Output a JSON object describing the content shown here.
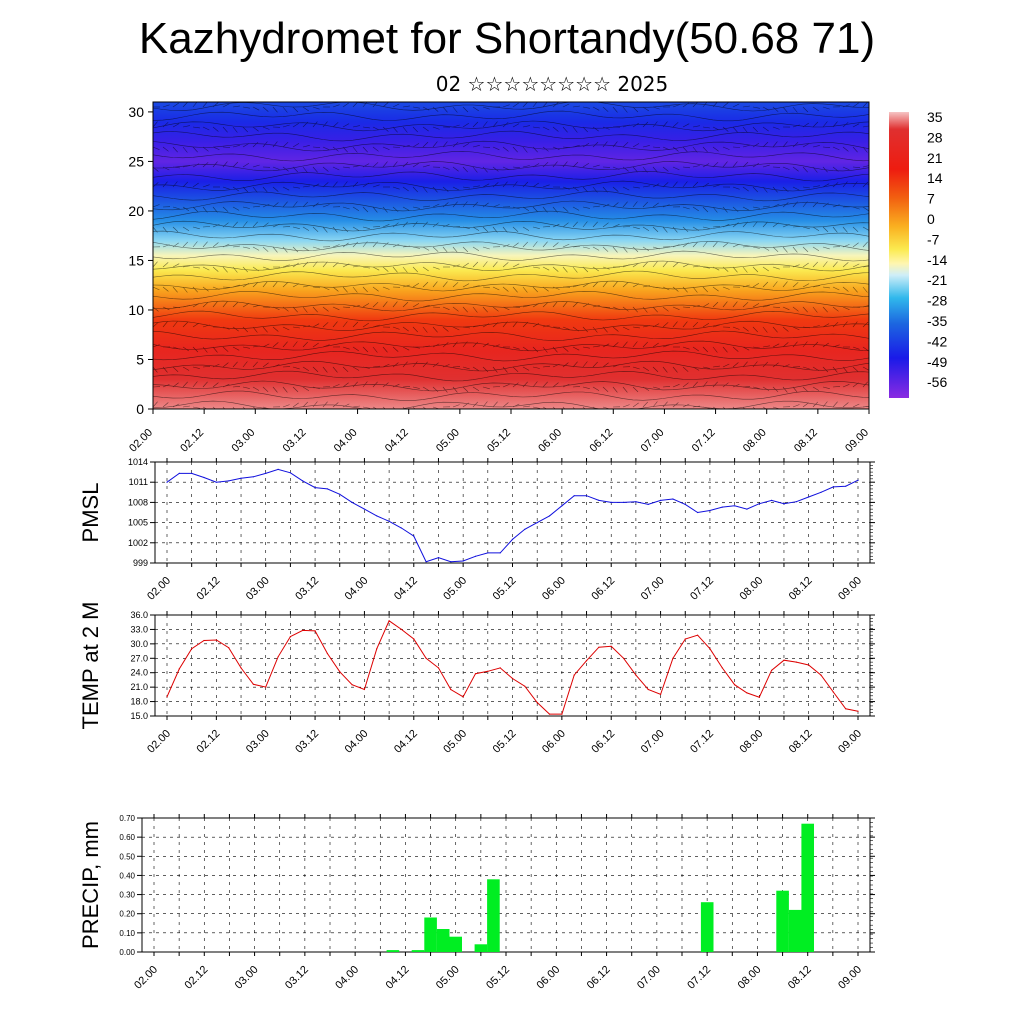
{
  "header": {
    "title": "Kazhydromet for Shortandy(50.68 71)",
    "subtitle": "02 ☆☆☆☆☆☆☆☆ 2025"
  },
  "time_ticks": [
    "02.00",
    "02.12",
    "03.00",
    "03.12",
    "04.00",
    "04.12",
    "05.00",
    "05.12",
    "06.00",
    "06.12",
    "07.00",
    "07.12",
    "08.00",
    "08.12",
    "09.00"
  ],
  "colors": {
    "pmsl_line": "#1010dd",
    "temp_line": "#dd0000",
    "precip_bar": "#00ee22"
  },
  "chart_data": [
    {
      "type": "heatmap",
      "title": "",
      "ylim": [
        0,
        31
      ],
      "yticks": [
        0,
        5,
        10,
        15,
        20,
        25,
        30
      ],
      "colorbar_labels": [
        "35",
        "28",
        "21",
        "14",
        "7",
        "0",
        "-7",
        "-14",
        "-21",
        "-28",
        "-35",
        "-42",
        "-49",
        "-56"
      ],
      "profile_temp_by_height": [
        [
          0,
          33
        ],
        [
          3,
          30
        ],
        [
          6,
          25
        ],
        [
          9,
          18
        ],
        [
          12,
          8
        ],
        [
          14,
          0
        ],
        [
          15.5,
          -8
        ],
        [
          17,
          -17
        ],
        [
          19,
          -28
        ],
        [
          21,
          -38
        ],
        [
          23,
          -48
        ],
        [
          25,
          -56
        ],
        [
          27,
          -52
        ],
        [
          29,
          -46
        ],
        [
          31,
          -40
        ]
      ],
      "grid": true
    },
    {
      "type": "line",
      "ylabel": "PMSL",
      "ylim": [
        999,
        1014
      ],
      "yticks": [
        "999",
        "1002",
        "1005",
        "1008",
        "1011",
        "1014"
      ],
      "x": [
        0,
        3,
        6,
        9,
        12,
        15,
        18,
        21,
        24,
        27,
        30,
        33,
        36,
        39,
        42,
        45,
        48,
        51,
        54,
        57,
        60,
        63,
        66,
        69,
        72,
        75,
        78,
        81,
        84,
        87,
        90,
        93,
        96,
        99,
        102,
        105,
        108,
        111,
        114,
        117,
        120,
        123,
        126,
        129,
        132,
        135,
        138,
        141,
        144,
        147,
        150,
        153,
        156,
        159,
        162,
        165,
        168
      ],
      "values": [
        1011,
        1012.3,
        1012.3,
        1011.7,
        1011,
        1011.2,
        1011.6,
        1011.8,
        1012.3,
        1012.9,
        1012.4,
        1011.2,
        1010.2,
        1010,
        1009.2,
        1008,
        1007,
        1006,
        1005.2,
        1004.2,
        1003,
        999.2,
        999.8,
        999.2,
        999.3,
        1000,
        1000.5,
        1000.5,
        1002.5,
        1004,
        1005,
        1006,
        1007.5,
        1009,
        1009,
        1008.3,
        1008,
        1008,
        1008.1,
        1007.7,
        1008.3,
        1008.5,
        1007.7,
        1006.5,
        1006.8,
        1007.3,
        1007.5,
        1007,
        1007.8,
        1008.3,
        1007.8,
        1008.1,
        1008.8,
        1009.5,
        1010.3,
        1010.4,
        1011.3
      ]
    },
    {
      "type": "line",
      "ylabel": "TEMP at 2 M",
      "ylim": [
        15,
        36
      ],
      "yticks": [
        "15.0",
        "18.0",
        "21.0",
        "24.0",
        "27.0",
        "30.0",
        "33.0",
        "36.0"
      ],
      "x": [
        0,
        3,
        6,
        9,
        12,
        15,
        18,
        21,
        24,
        27,
        30,
        33,
        36,
        39,
        42,
        45,
        48,
        51,
        54,
        57,
        60,
        63,
        66,
        69,
        72,
        75,
        78,
        81,
        84,
        87,
        90,
        93,
        96,
        99,
        102,
        105,
        108,
        111,
        114,
        117,
        120,
        123,
        126,
        129,
        132,
        135,
        138,
        141,
        144,
        147,
        150,
        153,
        156,
        159,
        162,
        165,
        168
      ],
      "values": [
        19,
        24.8,
        29,
        30.7,
        30.8,
        29.2,
        25,
        21.6,
        21,
        27.3,
        31.5,
        32.8,
        32.7,
        28,
        24.2,
        21.5,
        20.5,
        29,
        34.8,
        33,
        31,
        27,
        25,
        20.5,
        19,
        23.8,
        24.3,
        25,
        22.8,
        21.2,
        17.8,
        15.4,
        15.4,
        23.5,
        26.5,
        29.3,
        29.5,
        27,
        23.5,
        20.5,
        19.5,
        27,
        31,
        31.8,
        29,
        25,
        21.5,
        19.8,
        18.9,
        24.5,
        26.6,
        26.2,
        25.6,
        23.5,
        20,
        16.5,
        16
      ]
    },
    {
      "type": "bar",
      "ylabel": "PRECIP, mm",
      "ylim": [
        0,
        0.7
      ],
      "yticks": [
        "0.00",
        "0.10",
        "0.20",
        "0.30",
        "0.40",
        "0.50",
        "0.60",
        "0.70"
      ],
      "bars": [
        {
          "x": 57,
          "value": 0.01
        },
        {
          "x": 63,
          "value": 0.01
        },
        {
          "x": 66,
          "value": 0.18
        },
        {
          "x": 69,
          "value": 0.12
        },
        {
          "x": 72,
          "value": 0.08
        },
        {
          "x": 78,
          "value": 0.04
        },
        {
          "x": 81,
          "value": 0.38
        },
        {
          "x": 132,
          "value": 0.26
        },
        {
          "x": 150,
          "value": 0.32
        },
        {
          "x": 153,
          "value": 0.22
        },
        {
          "x": 156,
          "value": 0.67
        }
      ]
    }
  ]
}
